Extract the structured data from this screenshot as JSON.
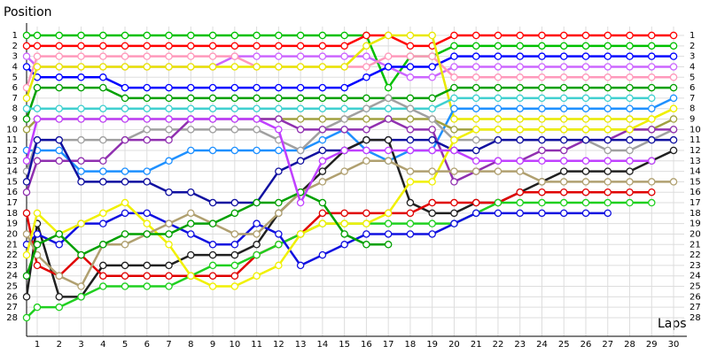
{
  "chart_data": {
    "type": "line",
    "y_axis_title": "Position",
    "x_axis_title": "Laps",
    "categories": [
      null,
      "1",
      "2",
      "3",
      "4",
      "5",
      "6",
      "7",
      "8",
      "9",
      "10",
      "11",
      "12",
      "13",
      "14",
      "15",
      "16",
      "17",
      "18",
      "19",
      "20",
      "21",
      "22",
      "23",
      "24",
      "25",
      "26",
      "27",
      "28",
      "29",
      "30"
    ],
    "ylim": [
      0,
      29
    ],
    "inverted": true,
    "grid": true,
    "yticks": [
      1,
      2,
      3,
      4,
      5,
      6,
      7,
      8,
      9,
      10,
      11,
      12,
      13,
      14,
      15,
      16,
      17,
      18,
      19,
      20,
      21,
      22,
      23,
      24,
      25,
      26,
      27,
      28
    ],
    "series": [
      {
        "color": "#00c000",
        "values": [
          1,
          1,
          1,
          1,
          1,
          1,
          1,
          1,
          1,
          1,
          1,
          1,
          1,
          1,
          1,
          1,
          1,
          6,
          3,
          3,
          2,
          2,
          2,
          2,
          2,
          2,
          2,
          2,
          2,
          2,
          2
        ]
      },
      {
        "color": "#ff0000",
        "values": [
          2,
          2,
          2,
          2,
          2,
          2,
          2,
          2,
          2,
          2,
          2,
          2,
          2,
          2,
          2,
          2,
          1,
          1,
          2,
          2,
          1,
          1,
          1,
          1,
          1,
          1,
          1,
          1,
          1,
          1,
          1
        ]
      },
      {
        "color": "#cc66ff",
        "values": [
          3,
          4,
          4,
          4,
          4,
          4,
          4,
          4,
          4,
          4,
          3,
          3,
          3,
          3,
          3,
          3,
          3,
          4,
          5,
          5,
          4,
          4,
          4,
          4,
          4,
          4,
          4,
          4,
          4,
          4,
          4
        ]
      },
      {
        "color": "#0000ff",
        "values": [
          4,
          5,
          5,
          5,
          5,
          6,
          6,
          6,
          6,
          6,
          6,
          6,
          6,
          6,
          6,
          6,
          5,
          4,
          4,
          4,
          3,
          3,
          3,
          3,
          3,
          3,
          3,
          3,
          3,
          3,
          3
        ]
      },
      {
        "color": "#ff99bb",
        "values": [
          6,
          3,
          3,
          3,
          3,
          3,
          3,
          3,
          3,
          3,
          3,
          4,
          4,
          4,
          4,
          4,
          4,
          3,
          3,
          3,
          5,
          5,
          5,
          5,
          5,
          5,
          5,
          5,
          5,
          5,
          5
        ]
      },
      {
        "color": "#e8e800",
        "values": [
          7,
          4,
          4,
          4,
          4,
          4,
          4,
          4,
          4,
          4,
          4,
          4,
          4,
          4,
          4,
          4,
          2,
          1,
          1,
          1,
          9,
          9,
          9,
          9,
          9,
          9,
          9,
          9,
          9,
          9,
          8
        ]
      },
      {
        "color": "#00a000",
        "values": [
          9,
          6,
          6,
          6,
          6,
          7,
          7,
          7,
          7,
          7,
          7,
          7,
          7,
          7,
          7,
          7,
          7,
          7,
          7,
          7,
          6,
          6,
          6,
          6,
          6,
          6,
          6,
          6,
          6,
          6,
          6
        ]
      },
      {
        "color": "#1e90ff",
        "values": [
          12,
          12,
          12,
          14,
          14,
          14,
          14,
          13,
          12,
          12,
          12,
          12,
          12,
          12,
          11,
          10,
          12,
          13,
          12,
          12,
          8,
          8,
          8,
          8,
          8,
          8,
          8,
          8,
          8,
          8,
          7
        ]
      },
      {
        "color": "#40d0d0",
        "values": [
          8,
          8,
          8,
          8,
          8,
          8,
          8,
          8,
          8,
          8,
          8,
          8,
          8,
          8,
          8,
          8,
          8,
          8,
          8,
          8,
          7,
          7,
          7,
          7,
          7,
          7,
          7,
          7,
          7,
          7,
          null
        ]
      },
      {
        "color": "#a0a040",
        "values": [
          10,
          9,
          9,
          9,
          9,
          9,
          9,
          9,
          9,
          9,
          9,
          9,
          9,
          9,
          9,
          9,
          9,
          9,
          9,
          9,
          10,
          10,
          10,
          10,
          10,
          10,
          10,
          10,
          10,
          10,
          9
        ]
      },
      {
        "color": "#a0a0a0",
        "values": [
          14,
          11,
          11,
          11,
          11,
          11,
          10,
          10,
          10,
          10,
          10,
          10,
          11,
          12,
          10,
          9,
          8,
          7,
          8,
          9,
          11,
          11,
          11,
          11,
          11,
          11,
          11,
          12,
          12,
          11,
          10
        ]
      },
      {
        "color": "#9030b0",
        "values": [
          16,
          13,
          13,
          13,
          13,
          11,
          11,
          11,
          9,
          9,
          9,
          9,
          9,
          10,
          10,
          10,
          10,
          9,
          10,
          10,
          15,
          14,
          13,
          13,
          12,
          12,
          11,
          11,
          10,
          10,
          10
        ]
      },
      {
        "color": "#1010a0",
        "values": [
          15,
          11,
          11,
          15,
          15,
          15,
          15,
          16,
          16,
          17,
          17,
          17,
          14,
          13,
          12,
          12,
          11,
          11,
          11,
          11,
          12,
          12,
          11,
          11,
          11,
          11,
          11,
          11,
          11,
          11,
          11
        ]
      },
      {
        "color": "#202020",
        "values": [
          26,
          19,
          26,
          26,
          23,
          23,
          23,
          23,
          22,
          22,
          22,
          21,
          18,
          16,
          14,
          12,
          11,
          11,
          17,
          18,
          18,
          17,
          17,
          16,
          15,
          14,
          14,
          14,
          14,
          13,
          12
        ]
      },
      {
        "color": "#e00000",
        "values": [
          18,
          23,
          24,
          22,
          24,
          24,
          24,
          24,
          24,
          24,
          24,
          22,
          21,
          20,
          18,
          18,
          18,
          18,
          18,
          17,
          17,
          17,
          17,
          16,
          16,
          16,
          16,
          16,
          16,
          16,
          null
        ]
      },
      {
        "color": "#20d020",
        "values": [
          28,
          27,
          27,
          26,
          25,
          25,
          25,
          25,
          24,
          23,
          23,
          22,
          21,
          20,
          19,
          19,
          19,
          19,
          19,
          19,
          19,
          18,
          17,
          17,
          17,
          17,
          17,
          17,
          17,
          17,
          null
        ]
      },
      {
        "color": "#1010e0",
        "values": [
          21,
          20,
          21,
          19,
          19,
          18,
          18,
          19,
          20,
          21,
          21,
          19,
          20,
          23,
          22,
          21,
          20,
          20,
          20,
          20,
          19,
          18,
          18,
          18,
          18,
          18,
          18,
          18,
          null,
          null,
          null
        ]
      },
      {
        "color": "#f0f000",
        "values": [
          22,
          18,
          20,
          19,
          18,
          17,
          19,
          21,
          24,
          25,
          25,
          24,
          23,
          20,
          19,
          19,
          19,
          18,
          15,
          15,
          11,
          10,
          10,
          10,
          10,
          10,
          10,
          10,
          10,
          9,
          8
        ]
      },
      {
        "color": "#b0a070",
        "values": [
          20,
          22,
          24,
          25,
          21,
          21,
          20,
          19,
          18,
          19,
          20,
          20,
          18,
          16,
          15,
          14,
          13,
          13,
          14,
          14,
          14,
          14,
          14,
          14,
          15,
          15,
          15,
          15,
          15,
          15,
          15
        ]
      },
      {
        "color": "#00a000",
        "values": [
          24,
          21,
          20,
          22,
          21,
          20,
          20,
          20,
          19,
          19,
          18,
          17,
          17,
          16,
          17,
          20,
          21,
          21,
          null,
          null,
          null,
          null,
          null,
          null,
          null,
          null,
          null,
          null,
          null,
          null,
          null
        ]
      },
      {
        "color": "#c040ff",
        "values": [
          13,
          9,
          9,
          9,
          9,
          9,
          9,
          9,
          9,
          9,
          9,
          9,
          10,
          17,
          13,
          12,
          12,
          12,
          12,
          12,
          12,
          13,
          13,
          13,
          13,
          13,
          13,
          13,
          13,
          13,
          null
        ]
      }
    ]
  }
}
